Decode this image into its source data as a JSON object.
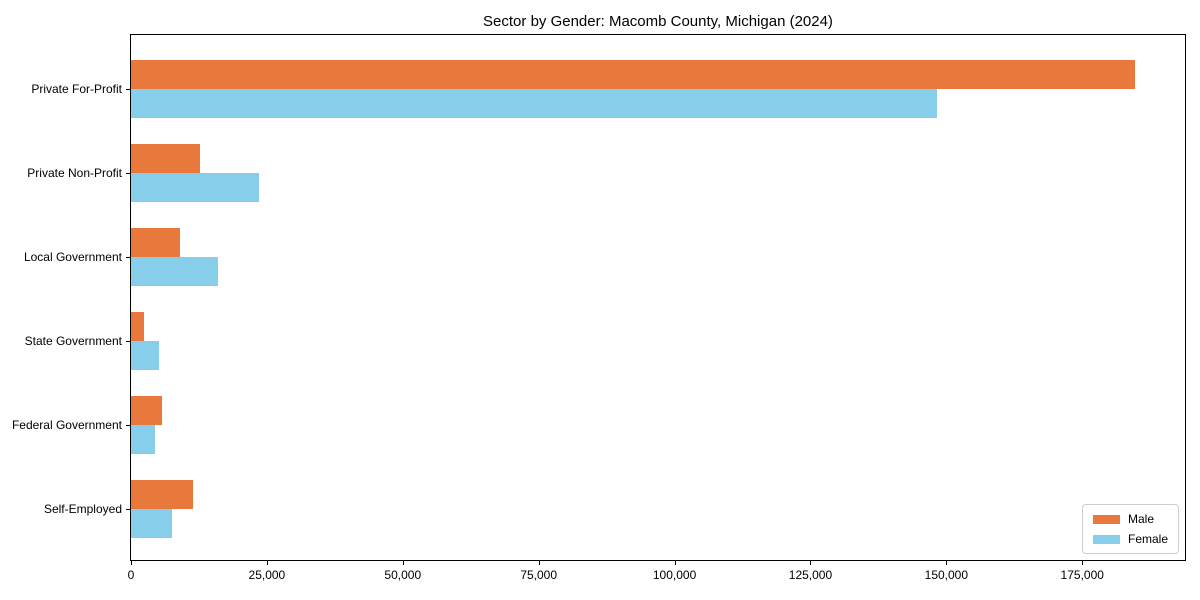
{
  "title": "Sector by Gender: Macomb County, Michigan (2024)",
  "colors": {
    "male": "#e8783c",
    "female": "#87ceeb",
    "axis": "#000000",
    "legend_border": "#cccccc",
    "background": "#ffffff"
  },
  "chart_data": {
    "type": "bar",
    "orientation": "horizontal",
    "title": "Sector by Gender: Macomb County, Michigan (2024)",
    "categories": [
      "Private For-Profit",
      "Private Non-Profit",
      "Local Government",
      "State Government",
      "Federal Government",
      "Self-Employed"
    ],
    "series": [
      {
        "name": "Male",
        "color": "#e8783c",
        "values": [
          184700,
          12700,
          9000,
          2350,
          5700,
          11400
        ]
      },
      {
        "name": "Female",
        "color": "#87ceeb",
        "values": [
          148200,
          23500,
          16000,
          5100,
          4350,
          7550
        ]
      }
    ],
    "xlabel": "",
    "ylabel": "",
    "xlim": [
      0,
      193900
    ],
    "xticks": [
      0,
      25000,
      50000,
      75000,
      100000,
      125000,
      150000,
      175000
    ],
    "xtick_labels": [
      "0",
      "25,000",
      "50,000",
      "75,000",
      "100,000",
      "125,000",
      "150,000",
      "175,000"
    ],
    "grid": false,
    "legend_position": "lower right"
  },
  "legend": {
    "items": [
      {
        "label": "Male",
        "color": "#e8783c"
      },
      {
        "label": "Female",
        "color": "#87ceeb"
      }
    ]
  }
}
